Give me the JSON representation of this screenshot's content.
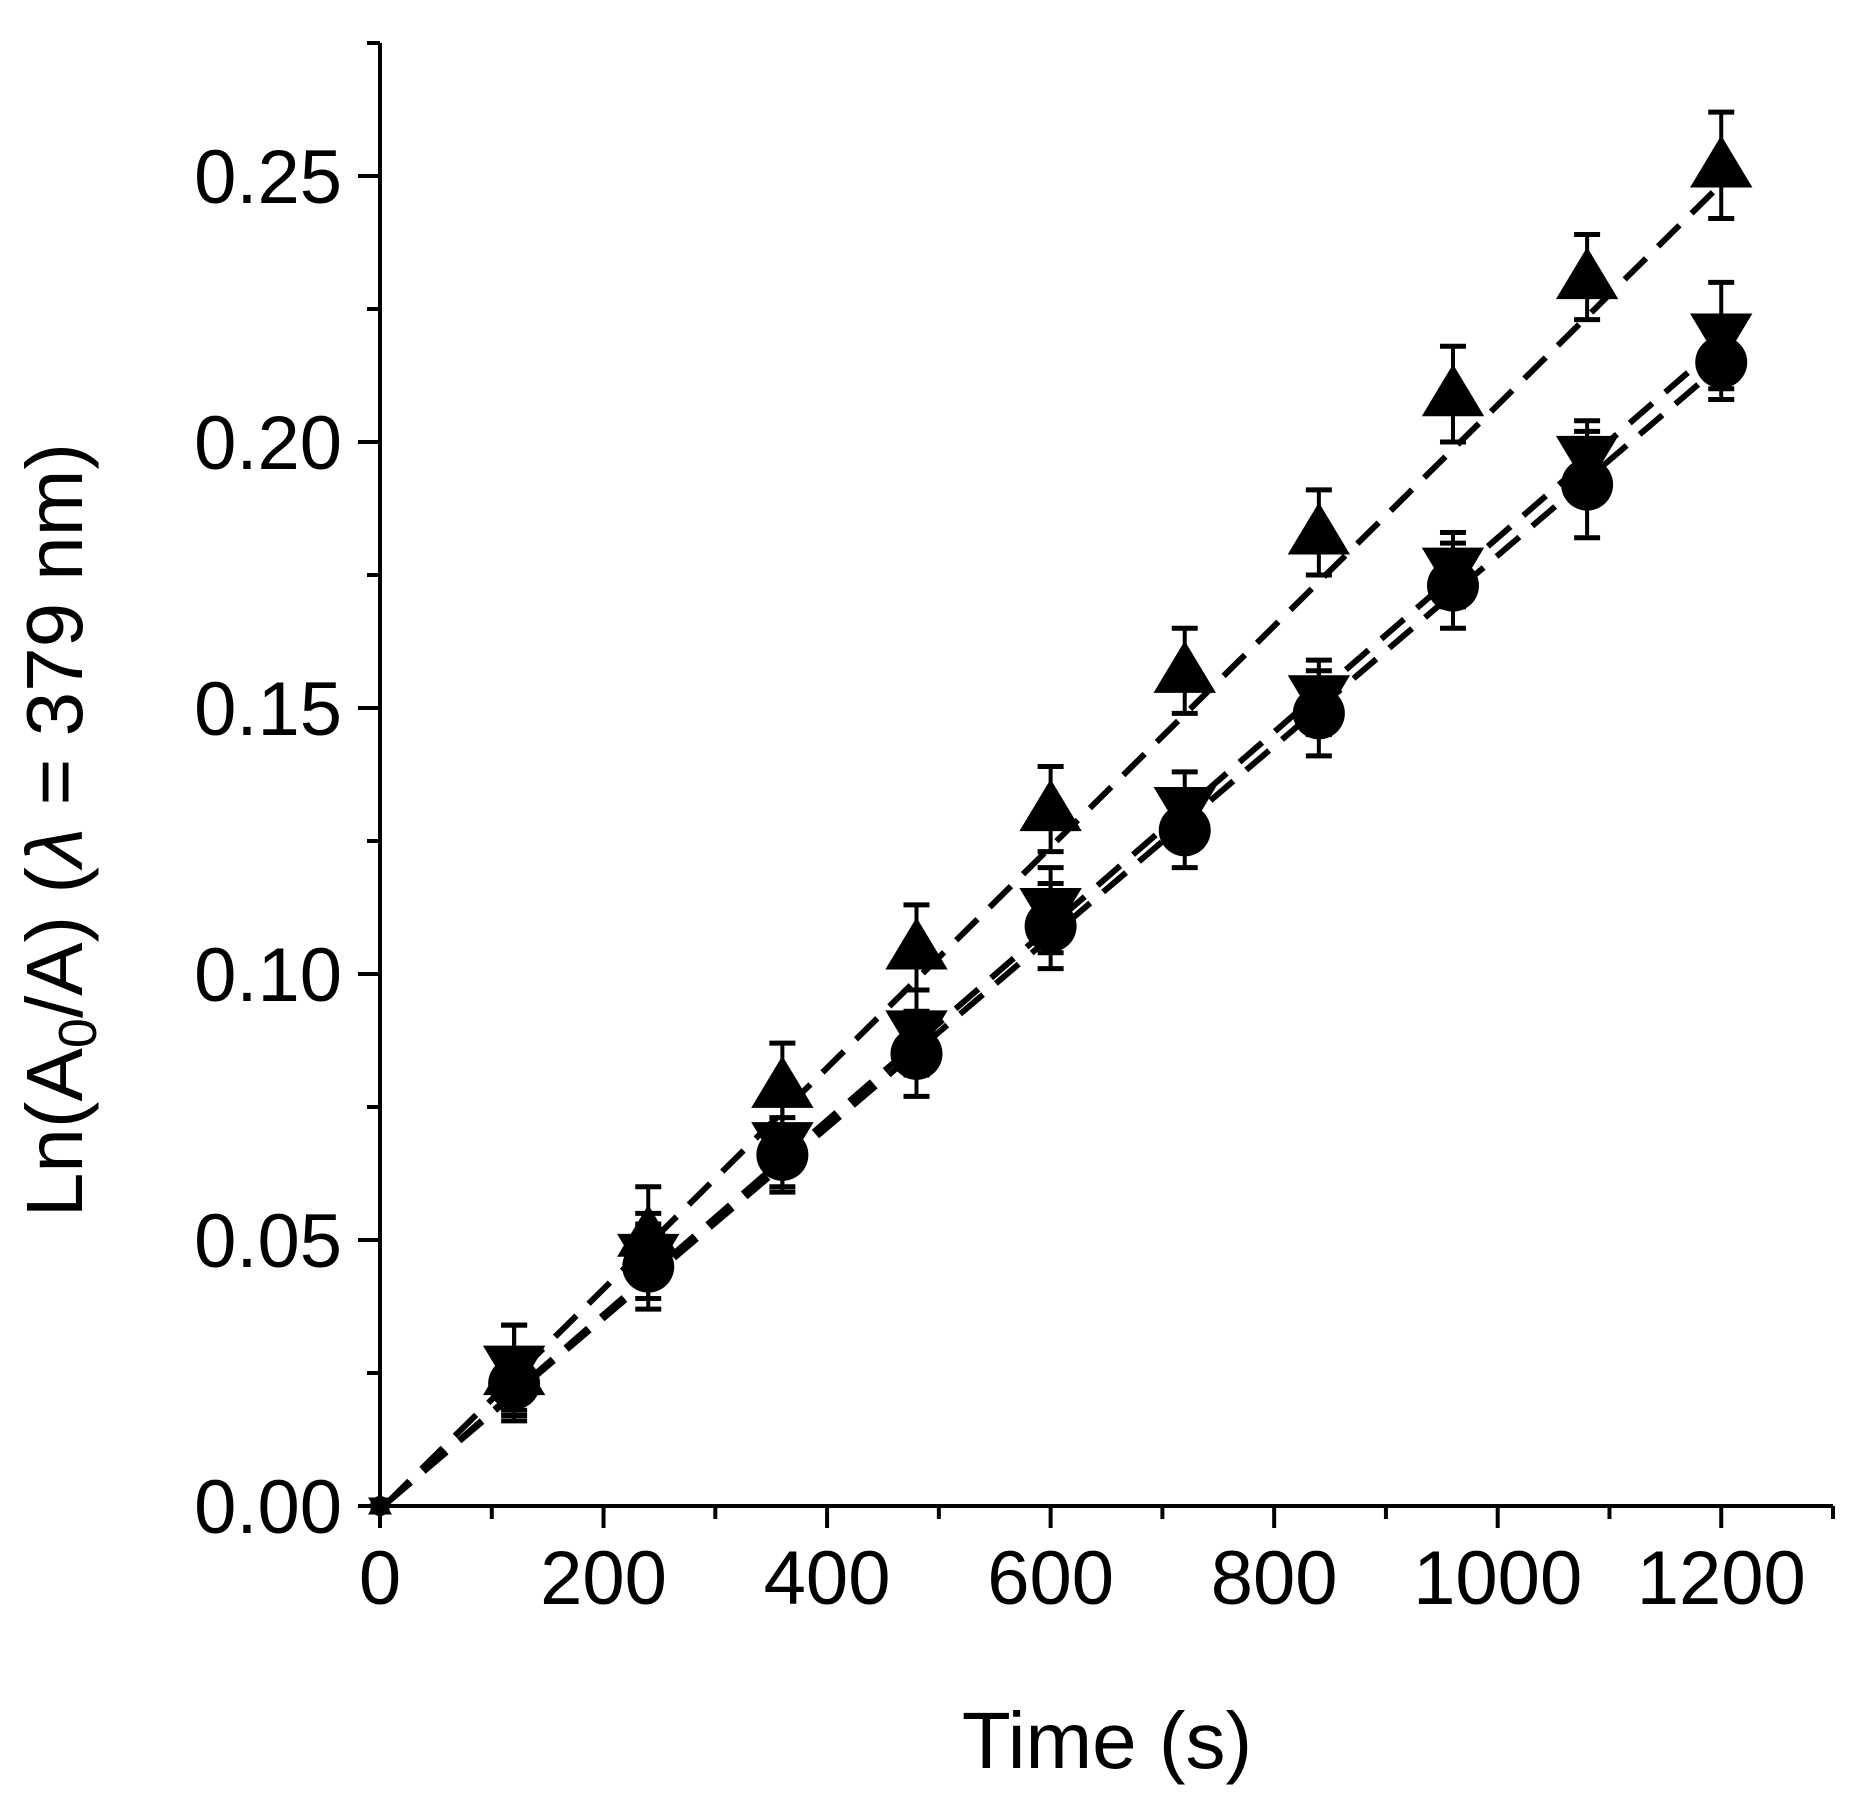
{
  "chart_data": {
    "type": "scatter",
    "title": "",
    "xlabel": "Time (s)",
    "ylabel": {
      "prefix": "Ln(A",
      "subscript": "0",
      "middle": "/A) (",
      "symbol": "λ",
      "suffix": " = 379 nm)"
    },
    "xlim": [
      0,
      1300
    ],
    "ylim": [
      0,
      0.275
    ],
    "x_ticks": [
      0,
      200,
      400,
      600,
      800,
      1000,
      1200
    ],
    "x_tick_labels": [
      "0",
      "200",
      "400",
      "600",
      "800",
      "1000",
      "1200"
    ],
    "x_minor_ticks": [
      100,
      300,
      500,
      700,
      900,
      1100,
      1300
    ],
    "y_ticks": [
      0,
      0.05,
      0.1,
      0.15,
      0.2,
      0.25
    ],
    "y_tick_labels": [
      "0.00",
      "0.05",
      "0.10",
      "0.15",
      "0.20",
      "0.25"
    ],
    "y_minor_ticks": [
      0.025,
      0.075,
      0.125,
      0.175,
      0.225,
      0.275
    ],
    "grid": false,
    "legend": "none",
    "color": "#000000",
    "series": [
      {
        "marker": "triangle-up",
        "x": [
          0,
          120,
          240,
          360,
          480,
          600,
          720,
          840,
          960,
          1080,
          1200
        ],
        "y": [
          0.0,
          0.025,
          0.051,
          0.079,
          0.105,
          0.131,
          0.157,
          0.183,
          0.209,
          0.231,
          0.252
        ],
        "error": [
          0.0,
          0.009,
          0.009,
          0.008,
          0.008,
          0.008,
          0.008,
          0.008,
          0.009,
          0.008,
          0.01
        ],
        "fit": {
          "x": [
            0,
            1200
          ],
          "y": [
            0.0,
            0.2485
          ]
        }
      },
      {
        "marker": "triangle-down",
        "x": [
          0,
          120,
          240,
          360,
          480,
          600,
          720,
          840,
          960,
          1080,
          1200
        ],
        "y": [
          0.0,
          0.026,
          0.047,
          0.068,
          0.089,
          0.112,
          0.131,
          0.152,
          0.176,
          0.197,
          0.22
        ],
        "error": [
          0.0,
          0.008,
          0.008,
          0.008,
          0.008,
          0.008,
          0.007,
          0.007,
          0.007,
          0.007,
          0.01
        ],
        "fit": {
          "x": [
            0,
            1200
          ],
          "y": [
            0.0,
            0.2185
          ]
        }
      },
      {
        "marker": "circle",
        "x": [
          0,
          120,
          240,
          360,
          480,
          600,
          720,
          840,
          960,
          1080,
          1200
        ],
        "y": [
          0.0,
          0.023,
          0.045,
          0.066,
          0.085,
          0.109,
          0.127,
          0.149,
          0.173,
          0.192,
          0.215
        ],
        "error": [
          0.0,
          0.006,
          0.008,
          0.007,
          0.008,
          0.008,
          0.007,
          0.008,
          0.008,
          0.01,
          0.007
        ],
        "fit": {
          "x": [
            0,
            1200
          ],
          "y": [
            0.0,
            0.2145
          ]
        }
      }
    ]
  }
}
